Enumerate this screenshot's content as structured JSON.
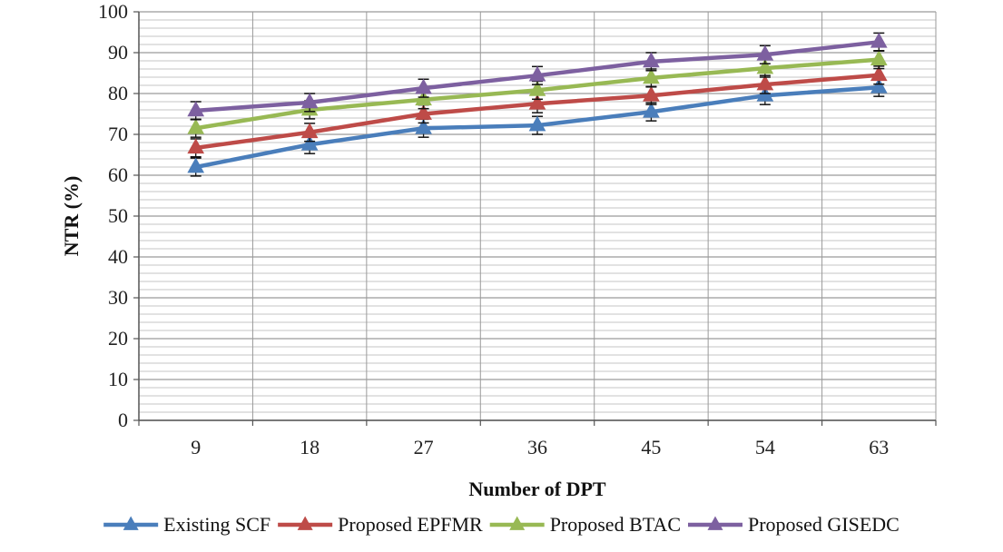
{
  "chart_data": {
    "type": "line",
    "title": "",
    "xlabel": "Number of DPT",
    "ylabel": "NTR (%)",
    "categories": [
      "9",
      "18",
      "27",
      "36",
      "45",
      "54",
      "63"
    ],
    "ylim": [
      0,
      100
    ],
    "ytick_step": 10,
    "minor_grid_step": 2,
    "grid": true,
    "legend_position": "bottom",
    "series": [
      {
        "name": "Existing SCF",
        "color": "#4a7ebb",
        "values": [
          62,
          67.5,
          71.5,
          72.2,
          75.5,
          79.5,
          81.5
        ]
      },
      {
        "name": "Proposed EPFMR",
        "color": "#be4b48",
        "values": [
          66.7,
          70.5,
          75,
          77.5,
          79.5,
          82.2,
          84.5
        ]
      },
      {
        "name": "Proposed BTAC",
        "color": "#98b954",
        "values": [
          71.5,
          76,
          78.5,
          80.8,
          83.8,
          86.2,
          88.3
        ]
      },
      {
        "name": "Proposed GISEDC",
        "color": "#7d60a0",
        "values": [
          75.8,
          77.8,
          81.3,
          84.4,
          87.8,
          89.5,
          92.6
        ]
      }
    ],
    "error": [
      2.2,
      2.2,
      2.2,
      2.2,
      2.2,
      2.2,
      2.2
    ]
  }
}
